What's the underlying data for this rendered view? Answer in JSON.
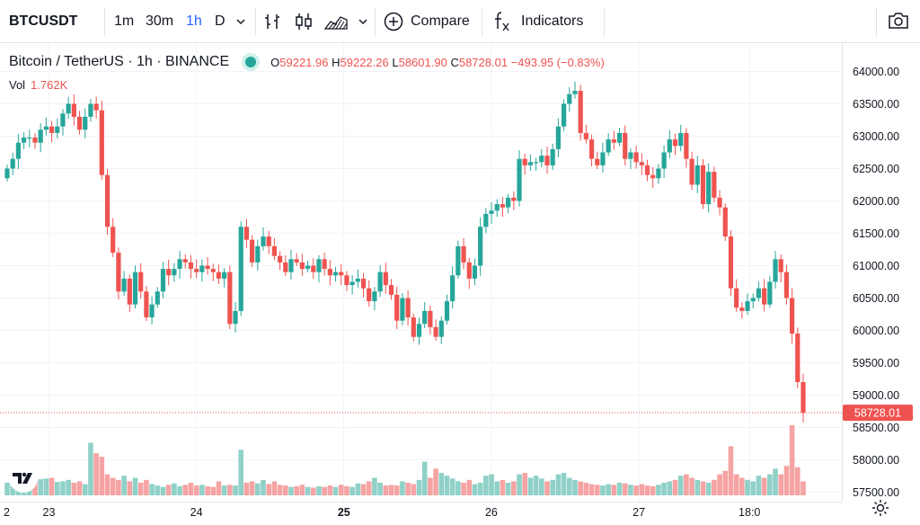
{
  "toolbar": {
    "symbol": "BTCUSDT",
    "intervals": [
      {
        "label": "1m",
        "active": false
      },
      {
        "label": "30m",
        "active": false
      },
      {
        "label": "1h",
        "active": true
      },
      {
        "label": "D",
        "active": false
      }
    ],
    "compare_label": "Compare",
    "indicators_label": "Indicators",
    "icons": [
      "chevron-down-icon",
      "bar-style-icon",
      "candle-style-icon",
      "area-style-icon",
      "chevron-down-icon",
      "plus-circle-icon",
      "fx-icon",
      "camera-icon"
    ]
  },
  "legend": {
    "title": "Bitcoin / TetherUS · 1h · BINANCE",
    "o_label": "O",
    "o": "59221.96",
    "h_label": "H",
    "h": "59222.26",
    "l_label": "L",
    "l": "58601.90",
    "c_label": "C",
    "c": "58728.01",
    "change": "−493.95 (−0.83%)",
    "vol_label": "Vol",
    "vol_value": "1.762K"
  },
  "colors": {
    "up": "#26a69a",
    "down": "#ef5350",
    "up_volume": "#8fd1c8",
    "down_volume": "#f5a3a3",
    "accent": "#2962ff",
    "grid": "#f0f3fa"
  },
  "price_marker": "58728.01",
  "chart_data": {
    "type": "candlestick",
    "y_ticks": [
      "64000.00",
      "63500.00",
      "63000.00",
      "62500.00",
      "62000.00",
      "61500.00",
      "61000.00",
      "60500.00",
      "60000.00",
      "59500.00",
      "59000.00",
      "58500.00",
      "58000.00",
      "57500.00"
    ],
    "ylim": [
      57400,
      64300
    ],
    "x_ticks": [
      "2",
      "23",
      "24",
      "25",
      "26",
      "27",
      "18:0"
    ],
    "x_tick_hours": [
      -17.5,
      6.5,
      30.5,
      54.5,
      78.5,
      102.5,
      120.5
    ],
    "x_tick_bold": [
      false,
      false,
      false,
      true,
      false,
      false,
      false
    ],
    "grid": true,
    "close_series": [
      62500,
      62650,
      62900,
      62980,
      62980,
      62900,
      63100,
      63150,
      63050,
      63150,
      63350,
      63500,
      63300,
      63100,
      63300,
      63500,
      63400,
      62400,
      61600,
      61200,
      60600,
      60800,
      60400,
      60900,
      60600,
      60200,
      60400,
      60600,
      60950,
      60850,
      60950,
      61100,
      61050,
      60950,
      60900,
      61000,
      60950,
      60900,
      60800,
      60900,
      60100,
      60300,
      61600,
      61400,
      61050,
      61300,
      61450,
      61300,
      61150,
      61050,
      60900,
      61100,
      61050,
      60950,
      61000,
      60900,
      61100,
      60950,
      60850,
      60900,
      60850,
      60700,
      60750,
      60800,
      60650,
      60450,
      60600,
      60900,
      60700,
      60550,
      60150,
      60500,
      60200,
      59900,
      60100,
      60300,
      60050,
      59900,
      60150,
      60450,
      60850,
      61300,
      61050,
      60800,
      61000,
      61600,
      61800,
      61850,
      61950,
      61900,
      62050,
      62000,
      62650,
      62550,
      62600,
      62600,
      62700,
      62550,
      62800,
      63150,
      63500,
      63650,
      63700,
      63050,
      62950,
      62650,
      62550,
      62750,
      62950,
      62900,
      63050,
      62650,
      62750,
      62600,
      62550,
      62400,
      62350,
      62500,
      62750,
      62950,
      62850,
      63050,
      62650,
      62250,
      62550,
      61950,
      62450,
      62050,
      61900,
      61450,
      60650,
      60350,
      60300,
      60450,
      60500,
      60650,
      60400,
      60750,
      61100,
      60900,
      60500,
      59950,
      59200,
      58728
    ],
    "volume_series": [
      0.18,
      0.15,
      0.22,
      0.2,
      0.17,
      0.21,
      0.23,
      0.24,
      0.25,
      0.19,
      0.2,
      0.22,
      0.18,
      0.2,
      0.16,
      0.75,
      0.6,
      0.55,
      0.3,
      0.25,
      0.22,
      0.28,
      0.2,
      0.25,
      0.18,
      0.22,
      0.16,
      0.14,
      0.12,
      0.15,
      0.17,
      0.13,
      0.15,
      0.18,
      0.14,
      0.15,
      0.13,
      0.12,
      0.2,
      0.14,
      0.15,
      0.14,
      0.65,
      0.18,
      0.2,
      0.17,
      0.22,
      0.16,
      0.2,
      0.15,
      0.14,
      0.12,
      0.13,
      0.15,
      0.12,
      0.11,
      0.13,
      0.12,
      0.14,
      0.12,
      0.15,
      0.13,
      0.12,
      0.17,
      0.16,
      0.2,
      0.25,
      0.18,
      0.14,
      0.15,
      0.14,
      0.2,
      0.18,
      0.16,
      0.22,
      0.48,
      0.25,
      0.38,
      0.32,
      0.28,
      0.24,
      0.2,
      0.18,
      0.22,
      0.16,
      0.18,
      0.28,
      0.3,
      0.2,
      0.22,
      0.18,
      0.2,
      0.3,
      0.32,
      0.25,
      0.28,
      0.24,
      0.2,
      0.22,
      0.3,
      0.32,
      0.25,
      0.22,
      0.2,
      0.18,
      0.16,
      0.15,
      0.14,
      0.16,
      0.15,
      0.18,
      0.17,
      0.15,
      0.14,
      0.16,
      0.14,
      0.13,
      0.15,
      0.18,
      0.2,
      0.22,
      0.28,
      0.3,
      0.25,
      0.22,
      0.2,
      0.18,
      0.22,
      0.3,
      0.35,
      0.7,
      0.3,
      0.25,
      0.22,
      0.2,
      0.28,
      0.25,
      0.3,
      0.38,
      0.3,
      0.42,
      1.0,
      0.4,
      0.2
    ]
  }
}
